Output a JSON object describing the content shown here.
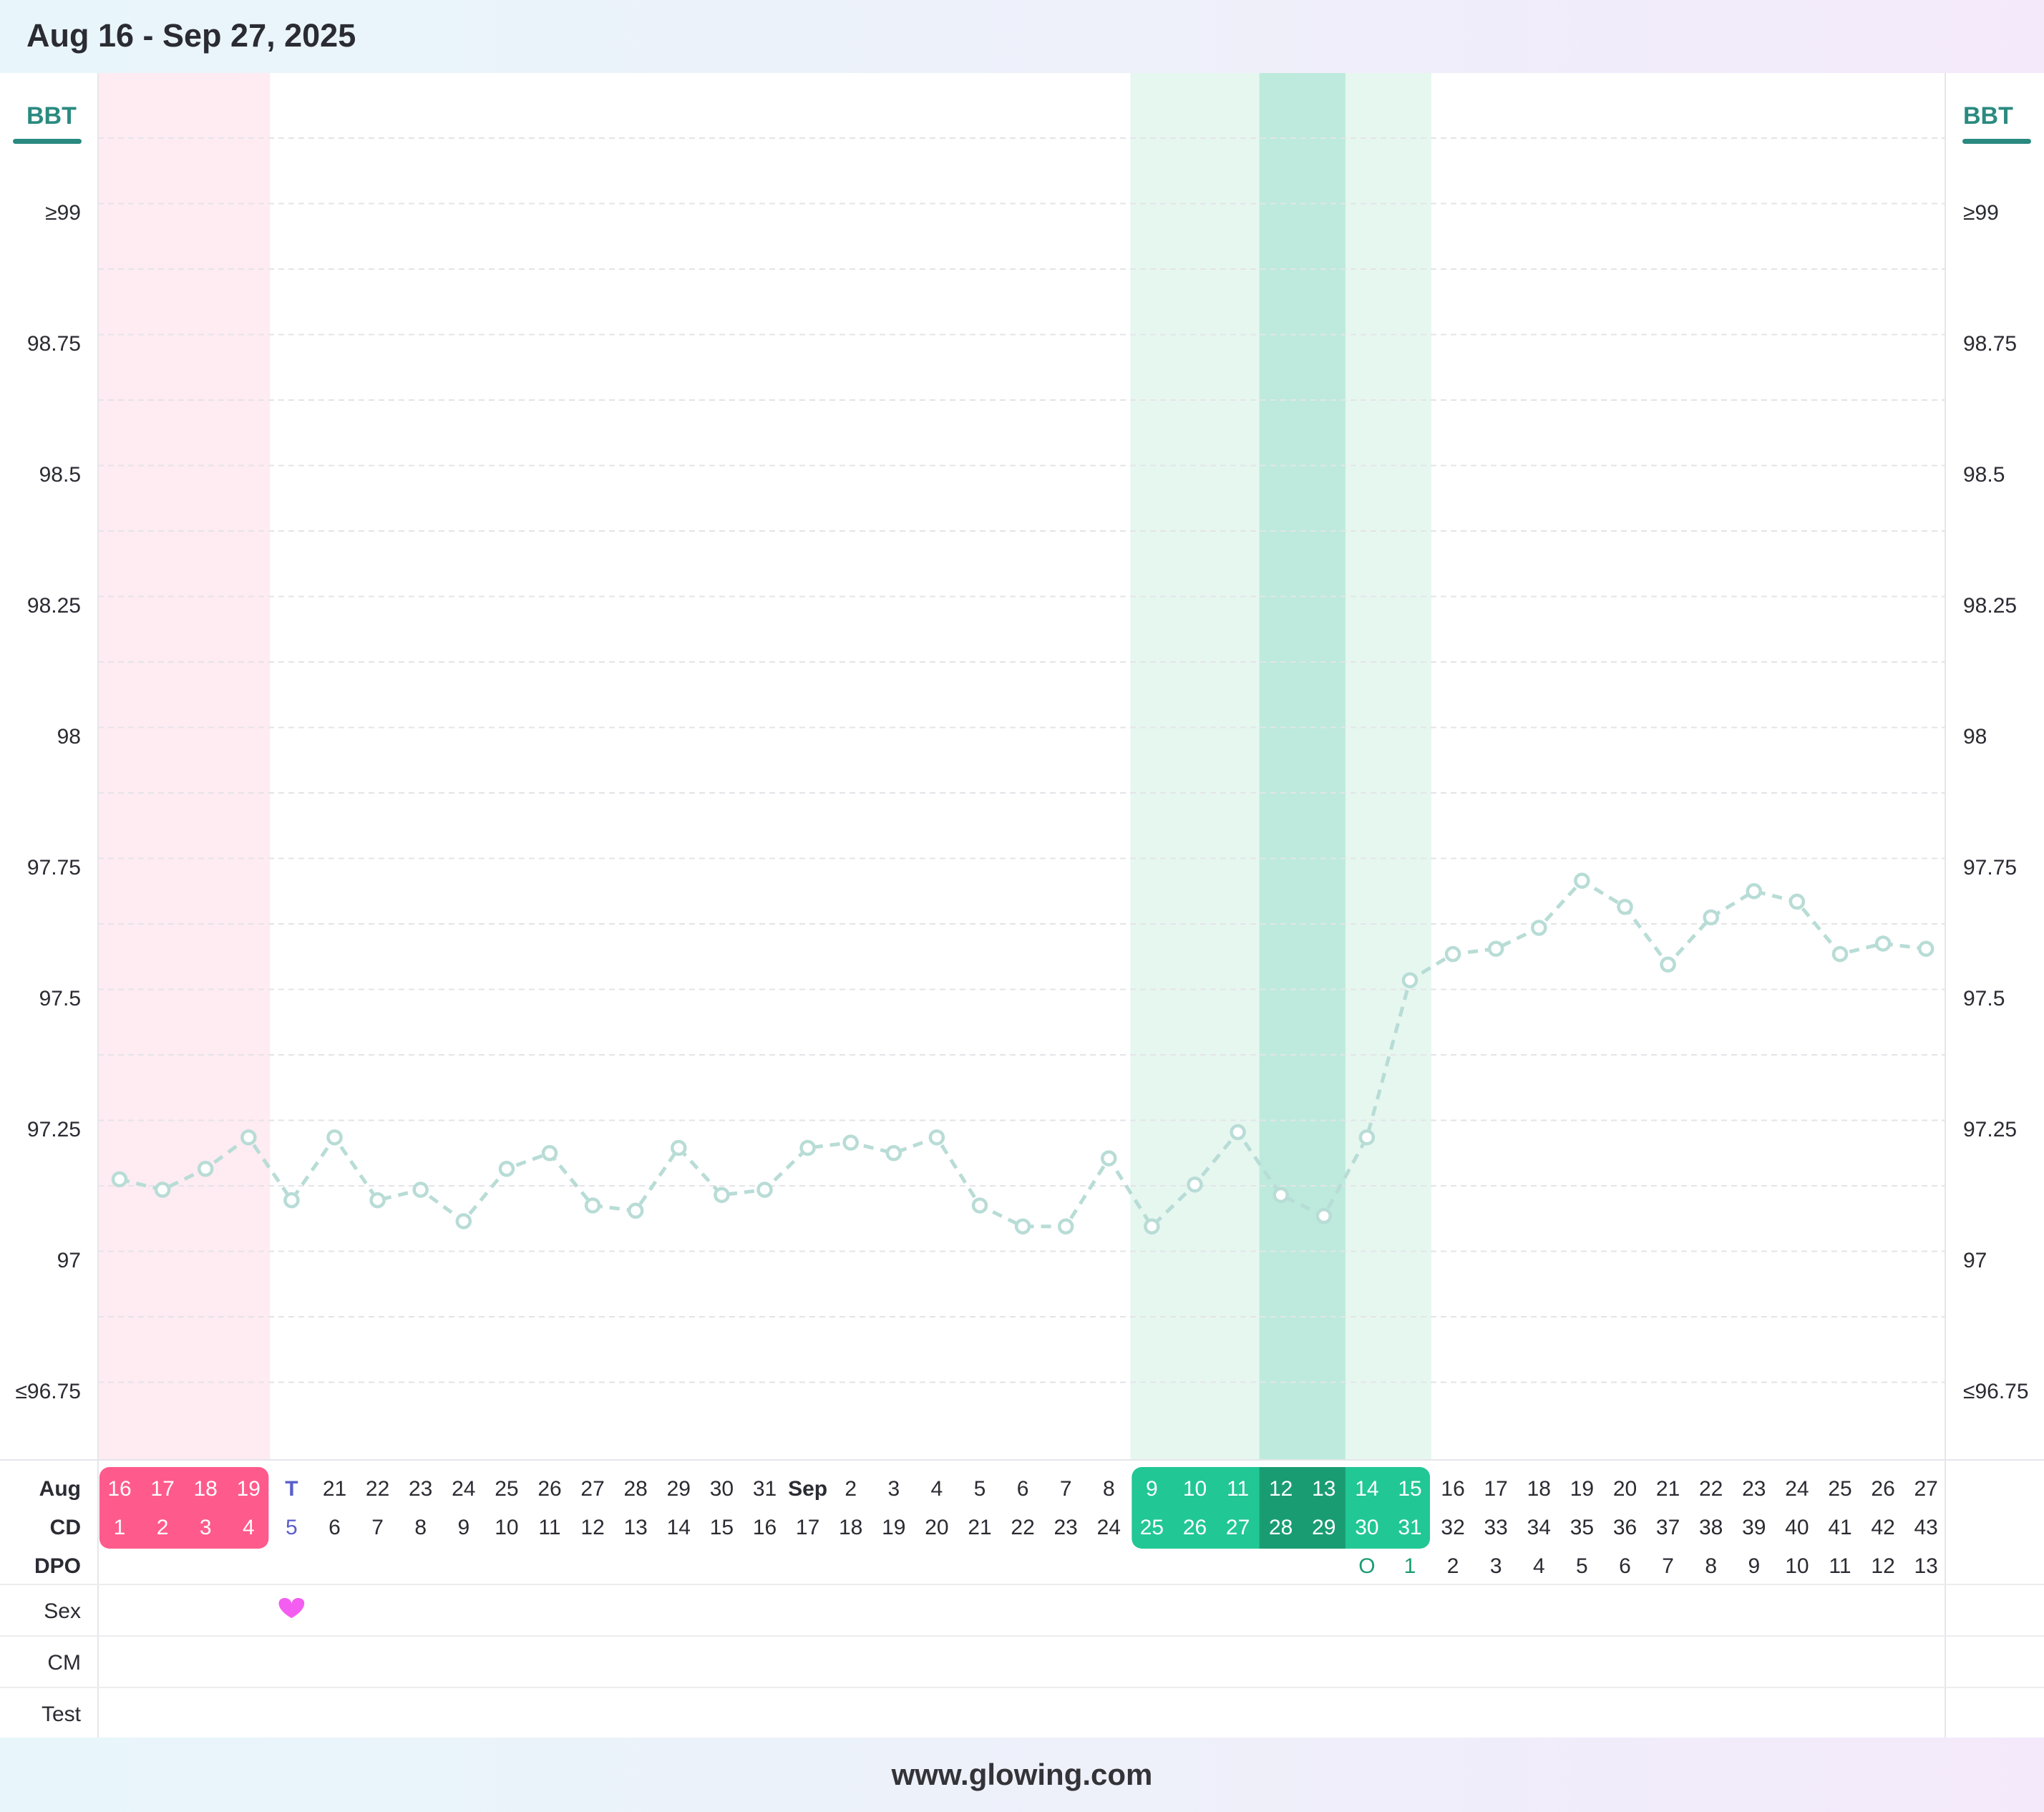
{
  "header": {
    "title": "Aug 16 - Sep 27, 2025"
  },
  "footer": {
    "text": "www.glowing.com"
  },
  "chart_data": {
    "type": "line",
    "metric_label": "BBT",
    "y_ticks": [
      "≥99",
      "98.75",
      "98.5",
      "98.25",
      "98",
      "97.75",
      "97.5",
      "97.25",
      "97",
      "≤96.75"
    ],
    "ylim": [
      96.75,
      99
    ],
    "rows": {
      "month": "Aug",
      "cd": "CD",
      "dpo": "DPO",
      "sex": "Sex",
      "cm": "CM",
      "test": "Test"
    },
    "dates": [
      "16",
      "17",
      "18",
      "19",
      "T",
      "21",
      "22",
      "23",
      "24",
      "25",
      "26",
      "27",
      "28",
      "29",
      "30",
      "31",
      "Sep",
      "2",
      "3",
      "4",
      "5",
      "6",
      "7",
      "8",
      "9",
      "10",
      "11",
      "12",
      "13",
      "14",
      "15",
      "16",
      "17",
      "18",
      "19",
      "20",
      "21",
      "22",
      "23",
      "24",
      "25",
      "26",
      "27"
    ],
    "cycle_days": [
      "1",
      "2",
      "3",
      "4",
      "5",
      "6",
      "7",
      "8",
      "9",
      "10",
      "11",
      "12",
      "13",
      "14",
      "15",
      "16",
      "17",
      "18",
      "19",
      "20",
      "21",
      "22",
      "23",
      "24",
      "25",
      "26",
      "27",
      "28",
      "29",
      "30",
      "31",
      "32",
      "33",
      "34",
      "35",
      "36",
      "37",
      "38",
      "39",
      "40",
      "41",
      "42",
      "43"
    ],
    "dpo": [
      "",
      "",
      "",
      "",
      "",
      "",
      "",
      "",
      "",
      "",
      "",
      "",
      "",
      "",
      "",
      "",
      "",
      "",
      "",
      "",
      "",
      "",
      "",
      "",
      "",
      "",
      "",
      "",
      "",
      "O",
      "1",
      "2",
      "3",
      "4",
      "5",
      "6",
      "7",
      "8",
      "9",
      "10",
      "11",
      "12",
      "13"
    ],
    "temperatures": [
      97.16,
      97.14,
      97.18,
      97.24,
      97.12,
      97.24,
      97.12,
      97.14,
      97.08,
      97.18,
      97.21,
      97.11,
      97.1,
      97.22,
      97.13,
      97.14,
      97.22,
      97.23,
      97.21,
      97.24,
      97.11,
      97.07,
      97.07,
      97.2,
      97.07,
      97.15,
      97.25,
      97.13,
      97.09,
      97.24,
      97.54,
      97.59,
      97.6,
      97.64,
      97.73,
      97.68,
      97.57,
      97.66,
      97.71,
      97.69,
      97.59,
      97.61,
      97.6
    ],
    "sex_days": [
      4
    ],
    "period_days": [
      0,
      3
    ],
    "fertile_window": [
      24,
      30
    ],
    "peak_fertility": [
      27,
      28
    ],
    "colors": {
      "period_band": "#ffebf2",
      "period_cell": "#ff5a8c",
      "fertile_band": "#e6f7f0",
      "fertile_cell": "#21c794",
      "peak_band": "#bdeadc",
      "peak_cell": "#1a9c73",
      "line": "#b8dcd6",
      "today_text": "#5a5fc8",
      "ovulation_text": "#1a9c73",
      "heart": "#f35df0",
      "bbt_accent": "#2a8a80"
    },
    "grid": true
  }
}
